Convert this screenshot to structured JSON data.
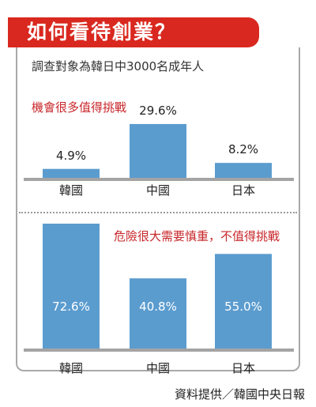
{
  "header": {
    "title": "如何看待創業？"
  },
  "subtitle": "調查對象為韓日中3000名成年人",
  "source": "資料提供／韓國中央日報",
  "colors": {
    "banner": "#d9281f",
    "bar": "#5b9ccf",
    "accent_text": "#c8262a"
  },
  "chart_data": [
    {
      "type": "bar",
      "title": "機會很多值得挑戰",
      "categories": [
        "韓國",
        "中國",
        "日本"
      ],
      "values": [
        4.9,
        29.6,
        8.2
      ],
      "value_labels": [
        "4.9%",
        "29.6%",
        "8.2%"
      ]
    },
    {
      "type": "bar",
      "title": "危險很大需要慎重，不值得挑戰",
      "categories": [
        "韓國",
        "中國",
        "日本"
      ],
      "values": [
        72.6,
        40.8,
        55.0
      ],
      "value_labels": [
        "72.6%",
        "40.8%",
        "55.0%"
      ]
    }
  ]
}
